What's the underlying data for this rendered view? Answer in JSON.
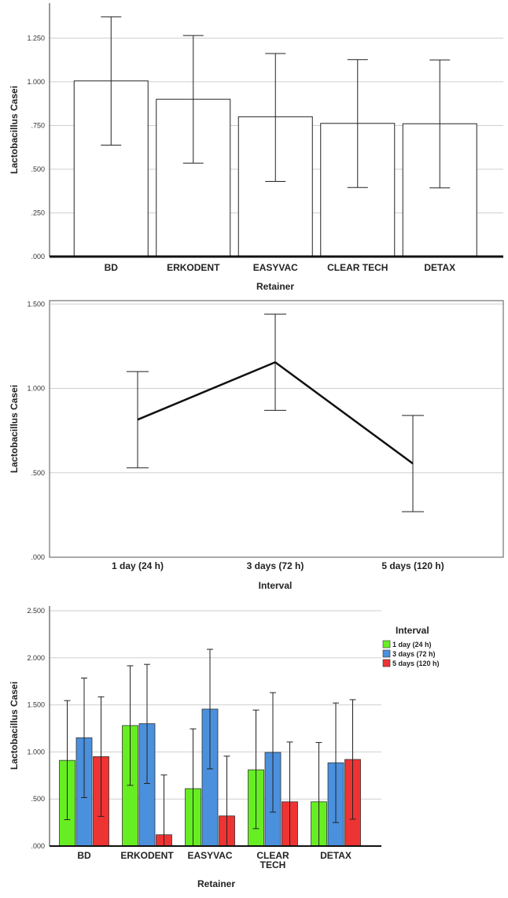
{
  "chart_data": [
    {
      "type": "bar",
      "title": "",
      "xlabel": "Retainer",
      "ylabel": "Lactobacillus Casei",
      "ylim": [
        0,
        1.45
      ],
      "yticks": [
        0,
        0.25,
        0.5,
        0.75,
        1.0,
        1.25
      ],
      "ytick_labels": [
        ".000",
        ".250",
        ".500",
        ".750",
        "1.000",
        "1.250"
      ],
      "grid": true,
      "categories": [
        "BD",
        "ERKODENT",
        "EASYVAC",
        "CLEAR TECH",
        "DETAX"
      ],
      "values": [
        1.005,
        0.9,
        0.8,
        0.762,
        0.76
      ],
      "error_low": [
        0.638,
        0.535,
        0.43,
        0.395,
        0.393
      ],
      "error_high": [
        1.372,
        1.265,
        1.162,
        1.127,
        1.125
      ]
    },
    {
      "type": "line",
      "title": "",
      "xlabel": "Interval",
      "ylabel": "Lactobacillus Casei",
      "ylim": [
        0,
        1.52
      ],
      "yticks": [
        0,
        0.5,
        1.0,
        1.5
      ],
      "ytick_labels": [
        ".000",
        ".500",
        "1.000",
        "1.500"
      ],
      "grid": true,
      "categories": [
        "1 day (24 h)",
        "3 days (72 h)",
        "5 days (120 h)"
      ],
      "values": [
        0.815,
        1.155,
        0.555
      ],
      "error_low": [
        0.53,
        0.87,
        0.27
      ],
      "error_high": [
        1.1,
        1.44,
        0.84
      ]
    },
    {
      "type": "bar",
      "title": "",
      "xlabel": "Retainer",
      "ylabel": "Lactobacillus Casei",
      "ylim": [
        0,
        2.55
      ],
      "yticks": [
        0,
        0.5,
        1.0,
        1.5,
        2.0,
        2.5
      ],
      "ytick_labels": [
        ".000",
        ".500",
        "1.000",
        "1.500",
        "2.000",
        "2.500"
      ],
      "grid": true,
      "categories": [
        "BD",
        "ERKODENT",
        "EASYVAC",
        "CLEAR TECH",
        "DETAX"
      ],
      "legend_title": "Interval",
      "legend_position": "top-right",
      "series": [
        {
          "name": "1 day (24 h)",
          "color": "#66ee22",
          "values": [
            0.91,
            1.28,
            0.61,
            0.81,
            0.47
          ],
          "error_low": [
            0.28,
            0.645,
            0.0,
            0.185,
            0.0
          ],
          "error_high": [
            1.545,
            1.915,
            1.245,
            1.445,
            1.1
          ]
        },
        {
          "name": "3 days (72 h)",
          "color": "#4a90dd",
          "values": [
            1.15,
            1.3,
            1.455,
            0.995,
            0.885
          ],
          "error_low": [
            0.515,
            0.665,
            0.82,
            0.36,
            0.25
          ],
          "error_high": [
            1.785,
            1.93,
            2.09,
            1.63,
            1.52
          ]
        },
        {
          "name": "5 days (120 h)",
          "color": "#ee3333",
          "values": [
            0.95,
            0.12,
            0.32,
            0.47,
            0.92
          ],
          "error_low": [
            0.315,
            0.0,
            0.0,
            0.0,
            0.285
          ],
          "error_high": [
            1.585,
            0.755,
            0.955,
            1.105,
            1.555
          ]
        }
      ]
    }
  ]
}
